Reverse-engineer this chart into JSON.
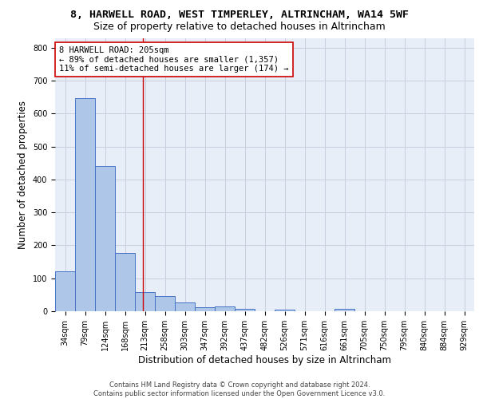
{
  "title_line1": "8, HARWELL ROAD, WEST TIMPERLEY, ALTRINCHAM, WA14 5WF",
  "title_line2": "Size of property relative to detached houses in Altrincham",
  "xlabel": "Distribution of detached houses by size in Altrincham",
  "ylabel": "Number of detached properties",
  "footer_line1": "Contains HM Land Registry data © Crown copyright and database right 2024.",
  "footer_line2": "Contains public sector information licensed under the Open Government Licence v3.0.",
  "categories": [
    "34sqm",
    "79sqm",
    "124sqm",
    "168sqm",
    "213sqm",
    "258sqm",
    "303sqm",
    "347sqm",
    "392sqm",
    "437sqm",
    "482sqm",
    "526sqm",
    "571sqm",
    "616sqm",
    "661sqm",
    "705sqm",
    "750sqm",
    "795sqm",
    "840sqm",
    "884sqm",
    "929sqm"
  ],
  "values": [
    122,
    648,
    440,
    178,
    57,
    45,
    26,
    13,
    15,
    8,
    0,
    5,
    0,
    0,
    8,
    0,
    0,
    0,
    0,
    0,
    0
  ],
  "bar_color": "#aec6e8",
  "bar_edge_color": "#4472c4",
  "vline_x_index": 4,
  "vline_color": "#cc0000",
  "annotation_box_color": "#ffffff",
  "annotation_box_edge_color": "#cc0000",
  "annotation_line1": "8 HARWELL ROAD: 205sqm",
  "annotation_line2": "← 89% of detached houses are smaller (1,357)",
  "annotation_line3": "11% of semi-detached houses are larger (174) →",
  "ylim": [
    0,
    830
  ],
  "yticks": [
    0,
    100,
    200,
    300,
    400,
    500,
    600,
    700,
    800
  ],
  "grid_color": "#c8d0e0",
  "background_color": "#e8eef8",
  "fig_background": "#ffffff",
  "title_fontsize": 9.5,
  "subtitle_fontsize": 9,
  "ylabel_fontsize": 8.5,
  "xlabel_fontsize": 8.5,
  "tick_fontsize": 7,
  "annotation_fontsize": 7.5,
  "footer_fontsize": 6
}
